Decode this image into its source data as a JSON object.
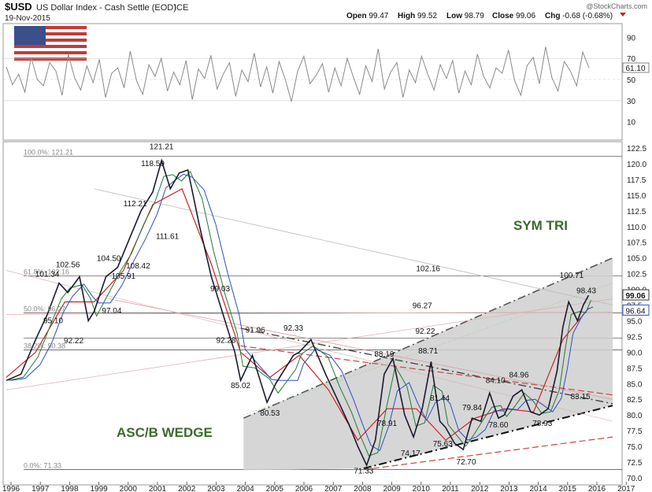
{
  "header": {
    "symbol": "$USD",
    "name": "US Dollar Index - Cash Settle (EOD)",
    "exchange": "ICE",
    "date": "19-Nov-2015",
    "watermark": "@StockCharts.com",
    "ohlc": [
      {
        "label": "Open",
        "value": "99.47"
      },
      {
        "label": "High",
        "value": "99.52"
      },
      {
        "label": "Low",
        "value": "98.79"
      },
      {
        "label": "Close",
        "value": "99.06"
      },
      {
        "label": "Chg",
        "value": "-0.68 (-0.68%)"
      }
    ]
  },
  "colors": {
    "price": "#1a1a2e",
    "ma_red": "#cc2222",
    "ma_green": "#1f7a3a",
    "ma_blue": "#2a4fc0",
    "rsi": "#8a8a8a",
    "triangle_fill": "#cfcfcf",
    "annotation_green": "#3a6b2a",
    "close_label_bg": "#ffffff"
  },
  "chart_data": [
    {
      "type": "line",
      "panel": "indicator",
      "yticks": [
        10,
        30,
        50,
        70,
        90
      ],
      "ylim": [
        0,
        100
      ],
      "current_value": "61.10",
      "series": [
        {
          "values": [
            62,
            45,
            55,
            38,
            71,
            50,
            44,
            66,
            58,
            35,
            74,
            52,
            40,
            63,
            47,
            69,
            33,
            56,
            61,
            42,
            77,
            49,
            36,
            64,
            53,
            70,
            39,
            57,
            45,
            68,
            31,
            60,
            51,
            73,
            41,
            55,
            66,
            34,
            59,
            48,
            75,
            43,
            62,
            37,
            67,
            50,
            29,
            58,
            72,
            46,
            54,
            65,
            38,
            61,
            44,
            70,
            52,
            36,
            63,
            48,
            79,
            41,
            57,
            66,
            33,
            59,
            47,
            72,
            55,
            40,
            64,
            51,
            68,
            37,
            58,
            45,
            74,
            53,
            42,
            61,
            56,
            78,
            49,
            35,
            63,
            71,
            46,
            81,
            52,
            39,
            67,
            58,
            44,
            76,
            61
          ]
        }
      ]
    },
    {
      "type": "line",
      "panel": "price",
      "x_ticks": [
        "1996",
        "1997",
        "1998",
        "1999",
        "2000",
        "2001",
        "2002",
        "2003",
        "2004",
        "2005",
        "2006",
        "2007",
        "2008",
        "2009",
        "2010",
        "2011",
        "2012",
        "2013",
        "2014",
        "2015",
        "2016",
        "2017"
      ],
      "ylim": [
        70.0,
        122.5
      ],
      "yticks": [
        "70.0",
        "72.5",
        "75.0",
        "77.5",
        "80.0",
        "82.5",
        "85.0",
        "87.5",
        "90.0",
        "92.5",
        "95.0",
        "97.5",
        "100.0",
        "102.5",
        "105.0",
        "107.5",
        "110.0",
        "112.5",
        "115.0",
        "117.5",
        "120.0",
        "122.5"
      ],
      "series": [
        {
          "name": "",
          "x": [
            1996.0,
            1996.5,
            1997.0,
            1997.4,
            1997.8,
            1998.1,
            1998.5,
            1998.8,
            1999.0,
            1999.4,
            1999.8,
            2000.2,
            2000.6,
            2001.0,
            2001.3,
            2001.6,
            2001.9,
            2002.2,
            2002.6,
            2003.0,
            2003.4,
            2003.8,
            2004.0,
            2004.4,
            2004.9,
            2005.2,
            2005.8,
            2006.0,
            2006.4,
            2006.9,
            2007.3,
            2007.7,
            2008.0,
            2008.3,
            2008.6,
            2008.9,
            2009.2,
            2009.6,
            2009.9,
            2010.2,
            2010.5,
            2010.8,
            2011.0,
            2011.3,
            2011.6,
            2011.9,
            2012.2,
            2012.5,
            2012.8,
            2013.0,
            2013.3,
            2013.6,
            2013.9,
            2014.2,
            2014.5,
            2014.8,
            2015.0,
            2015.2,
            2015.5,
            2015.7,
            2015.88
          ],
          "y": [
            85.5,
            86.5,
            92.0,
            96.0,
            101.0,
            99.5,
            102.0,
            95.0,
            96.5,
            102.0,
            103.5,
            108.0,
            112.5,
            115.5,
            120.5,
            116.0,
            118.5,
            119.0,
            110.0,
            102.0,
            96.0,
            90.0,
            85.5,
            89.5,
            82.0,
            85.0,
            89.5,
            90.0,
            92.0,
            86.5,
            82.5,
            78.5,
            75.0,
            72.0,
            76.0,
            86.5,
            89.0,
            80.0,
            76.5,
            81.0,
            88.5,
            79.0,
            78.0,
            75.5,
            74.5,
            79.5,
            79.0,
            83.5,
            79.5,
            80.0,
            83.0,
            84.0,
            80.5,
            80.0,
            81.0,
            87.0,
            94.0,
            98.0,
            95.0,
            97.5,
            99.06
          ]
        },
        {
          "name": "",
          "x": [
            1996.0,
            1997.0,
            1998.0,
            1999.0,
            2000.0,
            2001.0,
            2002.0,
            2003.0,
            2004.0,
            2005.0,
            2006.0,
            2007.0,
            2008.0,
            2009.0,
            2010.0,
            2011.0,
            2012.0,
            2013.0,
            2014.0,
            2015.0,
            2015.88
          ],
          "y": [
            86.0,
            90.0,
            98.0,
            98.0,
            103.0,
            113.5,
            116.0,
            104.0,
            90.0,
            86.0,
            89.5,
            84.0,
            76.0,
            81.0,
            81.0,
            76.0,
            79.5,
            81.0,
            80.5,
            92.0,
            97.0
          ]
        }
      ],
      "annotations": [
        "121.21",
        "118.59",
        "112.21",
        "111.61",
        "108.42",
        "105.91",
        "104.50",
        "102.56",
        "101.34",
        "97.04",
        "95.10",
        "92.22",
        "99.03",
        "91.96",
        "92.28",
        "92.33",
        "85.02",
        "80.53",
        "88.19",
        "88.71",
        "78.91",
        "81.44",
        "79.84",
        "74.17",
        "75.63",
        "72.70",
        "71.33",
        "84.10",
        "84.96",
        "78.60",
        "78.93",
        "100.71",
        "98.43",
        "83.15",
        "102.16",
        "96.27",
        "92.22"
      ],
      "fib_labels": [
        "100.0%: 121.21",
        "61.8%: 102.16",
        "50.0%: 96.27",
        "38.2%: 90.38",
        "0.0%: 71.33"
      ],
      "pattern_labels": [
        "SYM TRI",
        "ASC/B WEDGE"
      ],
      "right_labels": [
        "99.06",
        "96.64"
      ]
    }
  ]
}
